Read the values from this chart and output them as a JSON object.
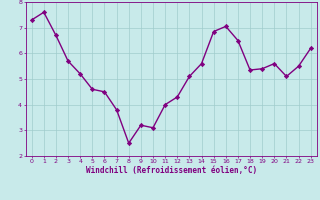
{
  "x": [
    0,
    1,
    2,
    3,
    4,
    5,
    6,
    7,
    8,
    9,
    10,
    11,
    12,
    13,
    14,
    15,
    16,
    17,
    18,
    19,
    20,
    21,
    22,
    23
  ],
  "y": [
    7.3,
    7.6,
    6.7,
    5.7,
    5.2,
    4.6,
    4.5,
    3.8,
    2.5,
    3.2,
    3.1,
    4.0,
    4.3,
    5.1,
    5.6,
    6.85,
    7.05,
    6.5,
    5.35,
    5.4,
    5.6,
    5.1,
    5.5,
    6.2
  ],
  "line_color": "#800080",
  "marker": "D",
  "marker_size": 2.2,
  "bg_color": "#c8eaea",
  "grid_color": "#a0cccc",
  "xlabel": "Windchill (Refroidissement éolien,°C)",
  "ylim": [
    2,
    8
  ],
  "xlim": [
    -0.5,
    23.5
  ],
  "yticks": [
    2,
    3,
    4,
    5,
    6,
    7,
    8
  ],
  "xticks": [
    0,
    1,
    2,
    3,
    4,
    5,
    6,
    7,
    8,
    9,
    10,
    11,
    12,
    13,
    14,
    15,
    16,
    17,
    18,
    19,
    20,
    21,
    22,
    23
  ],
  "tick_label_size": 4.5,
  "xlabel_size": 5.5,
  "line_width": 1.0,
  "axis_color": "#800080",
  "spine_color": "#800080"
}
